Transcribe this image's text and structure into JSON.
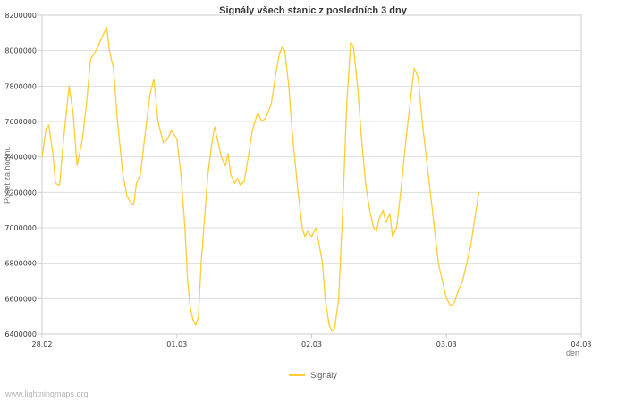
{
  "title": "Signály všech stanic z posledních 3 dny",
  "watermark": "www.lightningmaps.org",
  "legend": {
    "label": "Signály"
  },
  "colors": {
    "line": "#FFCC33",
    "grid": "#dddddd",
    "frame": "#cccccc",
    "tick_text": "#3a3a3a",
    "axis_label_text": "#777777"
  },
  "chart_data": {
    "type": "line",
    "title": "Signály všech stanic z posledních 3 dny",
    "xlabel": "den",
    "ylabel": "Počet za hodinu",
    "xlim": [
      0,
      4
    ],
    "ylim": [
      6400000,
      8200000
    ],
    "y_tick_step": 200000,
    "y_tick_labels": [
      "6400000",
      "6600000",
      "6800000",
      "7000000",
      "7200000",
      "7400000",
      "7600000",
      "7800000",
      "8000000",
      "8200000"
    ],
    "x_ticks": [
      {
        "v": 0,
        "label": "28.02"
      },
      {
        "v": 1,
        "label": "01.03"
      },
      {
        "v": 2,
        "label": "02.03"
      },
      {
        "v": 3,
        "label": "03.03"
      },
      {
        "v": 4,
        "label": "04.03"
      }
    ],
    "grid": "horizontal",
    "legend_position": "bottom-center",
    "series": [
      {
        "name": "Signály",
        "color": "#FFCC33",
        "x": [
          0.0,
          0.03,
          0.05,
          0.08,
          0.1,
          0.13,
          0.16,
          0.2,
          0.23,
          0.26,
          0.3,
          0.33,
          0.36,
          0.4,
          0.43,
          0.46,
          0.48,
          0.5,
          0.53,
          0.56,
          0.6,
          0.63,
          0.65,
          0.68,
          0.7,
          0.73,
          0.76,
          0.8,
          0.83,
          0.86,
          0.9,
          0.93,
          0.96,
          1.0,
          1.03,
          1.06,
          1.08,
          1.1,
          1.12,
          1.14,
          1.16,
          1.18,
          1.2,
          1.23,
          1.26,
          1.28,
          1.3,
          1.33,
          1.36,
          1.38,
          1.4,
          1.43,
          1.45,
          1.47,
          1.5,
          1.53,
          1.56,
          1.6,
          1.63,
          1.66,
          1.7,
          1.73,
          1.76,
          1.78,
          1.8,
          1.83,
          1.86,
          1.9,
          1.93,
          1.95,
          1.97,
          2.0,
          2.03,
          2.05,
          2.08,
          2.1,
          2.13,
          2.15,
          2.17,
          2.2,
          2.23,
          2.26,
          2.29,
          2.31,
          2.34,
          2.37,
          2.4,
          2.43,
          2.46,
          2.48,
          2.5,
          2.53,
          2.55,
          2.58,
          2.6,
          2.63,
          2.66,
          2.7,
          2.73,
          2.76,
          2.79,
          2.82,
          2.85,
          2.88,
          2.91,
          2.94,
          2.97,
          3.0,
          3.03,
          3.06,
          3.09,
          3.12,
          3.15,
          3.18,
          3.21,
          3.24
        ],
        "y": [
          7400000,
          7560000,
          7580000,
          7420000,
          7250000,
          7240000,
          7500000,
          7800000,
          7650000,
          7350000,
          7500000,
          7700000,
          7950000,
          8000000,
          8050000,
          8100000,
          8130000,
          8000000,
          7900000,
          7600000,
          7300000,
          7180000,
          7150000,
          7130000,
          7250000,
          7300000,
          7500000,
          7750000,
          7840000,
          7600000,
          7480000,
          7500000,
          7550000,
          7500000,
          7300000,
          7000000,
          6700000,
          6550000,
          6480000,
          6450000,
          6500000,
          6800000,
          7000000,
          7300000,
          7480000,
          7570000,
          7500000,
          7400000,
          7350000,
          7420000,
          7300000,
          7250000,
          7280000,
          7240000,
          7260000,
          7400000,
          7550000,
          7650000,
          7600000,
          7620000,
          7700000,
          7850000,
          7980000,
          8020000,
          8000000,
          7800000,
          7500000,
          7200000,
          7000000,
          6950000,
          6980000,
          6950000,
          7000000,
          6930000,
          6800000,
          6600000,
          6450000,
          6420000,
          6430000,
          6600000,
          7100000,
          7700000,
          8050000,
          8020000,
          7800000,
          7500000,
          7250000,
          7100000,
          7000000,
          6980000,
          7050000,
          7100000,
          7030000,
          7080000,
          6950000,
          7000000,
          7200000,
          7500000,
          7700000,
          7900000,
          7850000,
          7600000,
          7400000,
          7200000,
          7000000,
          6800000,
          6700000,
          6600000,
          6560000,
          6580000,
          6650000,
          6700000,
          6800000,
          6900000,
          7050000,
          7200000
        ]
      }
    ]
  }
}
